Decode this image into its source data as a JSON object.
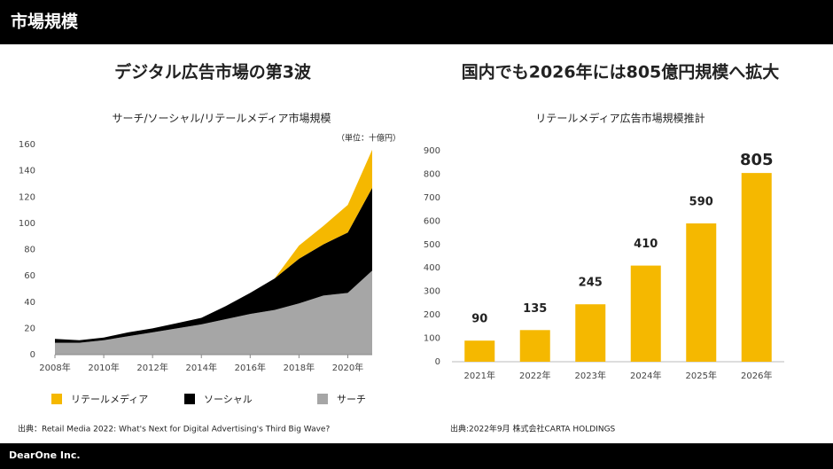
{
  "header": {
    "title": "市場規模"
  },
  "footer": {
    "company": "DearOne Inc."
  },
  "chart_data": [
    {
      "type": "stacked-area",
      "heading": "デジタル広告市場の第3波",
      "title": "サーチ/ソーシャル/リテールメディア市場規模",
      "unit": "（単位：十億円）",
      "x": [
        2008,
        2009,
        2010,
        2011,
        2012,
        2013,
        2014,
        2015,
        2016,
        2017,
        2018,
        2019,
        2020,
        2021
      ],
      "series": [
        {
          "name": "リテールメディア",
          "color": "#f5b800",
          "values": [
            0,
            0,
            0,
            0,
            0,
            0,
            0,
            0,
            0,
            0,
            10,
            14,
            21,
            29
          ]
        },
        {
          "name": "ソーシャル",
          "color": "#000000",
          "values": [
            3,
            2,
            2,
            3,
            3,
            4,
            5,
            10,
            16,
            24,
            34,
            39,
            46,
            63
          ]
        },
        {
          "name": "サーチ",
          "color": "#a6a6a6",
          "values": [
            9,
            9,
            11,
            14,
            17,
            20,
            23,
            27,
            31,
            34,
            39,
            45,
            47,
            64
          ]
        }
      ],
      "xlim": [
        2008,
        2021
      ],
      "xticks": [
        {
          "value": 2008,
          "label": "2008年"
        },
        {
          "value": 2010,
          "label": "2010年"
        },
        {
          "value": 2012,
          "label": "2012年"
        },
        {
          "value": 2014,
          "label": "2014年"
        },
        {
          "value": 2016,
          "label": "2016年"
        },
        {
          "value": 2018,
          "label": "2018年"
        },
        {
          "value": 2020,
          "label": "2020年"
        }
      ],
      "ylim": [
        0,
        160
      ],
      "yticks": [
        0,
        20,
        40,
        60,
        80,
        100,
        120,
        140,
        160
      ],
      "legend": "bottom",
      "source": "出典：Retail Media 2022: What's Next for Digital Advertising's Third Big Wave?"
    },
    {
      "type": "bar",
      "heading": "国内でも2026年には805億円規模へ拡大",
      "title": "リテールメディア広告市場規模推計",
      "categories": [
        "2021年",
        "2022年",
        "2023年",
        "2024年",
        "2025年",
        "2026年"
      ],
      "values": [
        90,
        135,
        245,
        410,
        590,
        805
      ],
      "color": "#f5b800",
      "ylim": [
        0,
        900
      ],
      "yticks": [
        0,
        100,
        200,
        300,
        400,
        500,
        600,
        700,
        800,
        900
      ],
      "source": "出典:2022年9月 株式会社CARTA HOLDINGS"
    }
  ]
}
